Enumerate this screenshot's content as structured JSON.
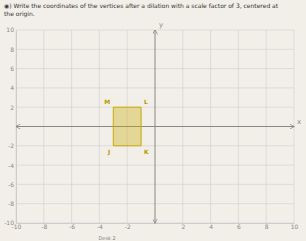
{
  "chart_data": {
    "type": "polygon",
    "title": "◉) Write the coordinates of the vertices after a dilation with a scale factor of 3, centered at",
    "subtitle": "the origin.",
    "xlabel": "x",
    "ylabel": "y",
    "annotations": [
      "Desk 2"
    ],
    "categories": [
      "M",
      "L",
      "K",
      "J"
    ],
    "x": [
      -3,
      -1,
      -1,
      -3
    ],
    "values": [
      2,
      2,
      -2,
      -2
    ],
    "color": "#c8aa00",
    "xlim": [
      -10,
      10
    ],
    "ylim": [
      -10,
      10
    ],
    "xticks": [
      -10,
      -8,
      -6,
      -4,
      -2,
      2,
      4,
      6,
      8,
      10
    ],
    "yticks": [
      -10,
      -8,
      -6,
      -4,
      -2,
      2,
      4,
      6,
      8,
      10
    ],
    "grid": true
  }
}
